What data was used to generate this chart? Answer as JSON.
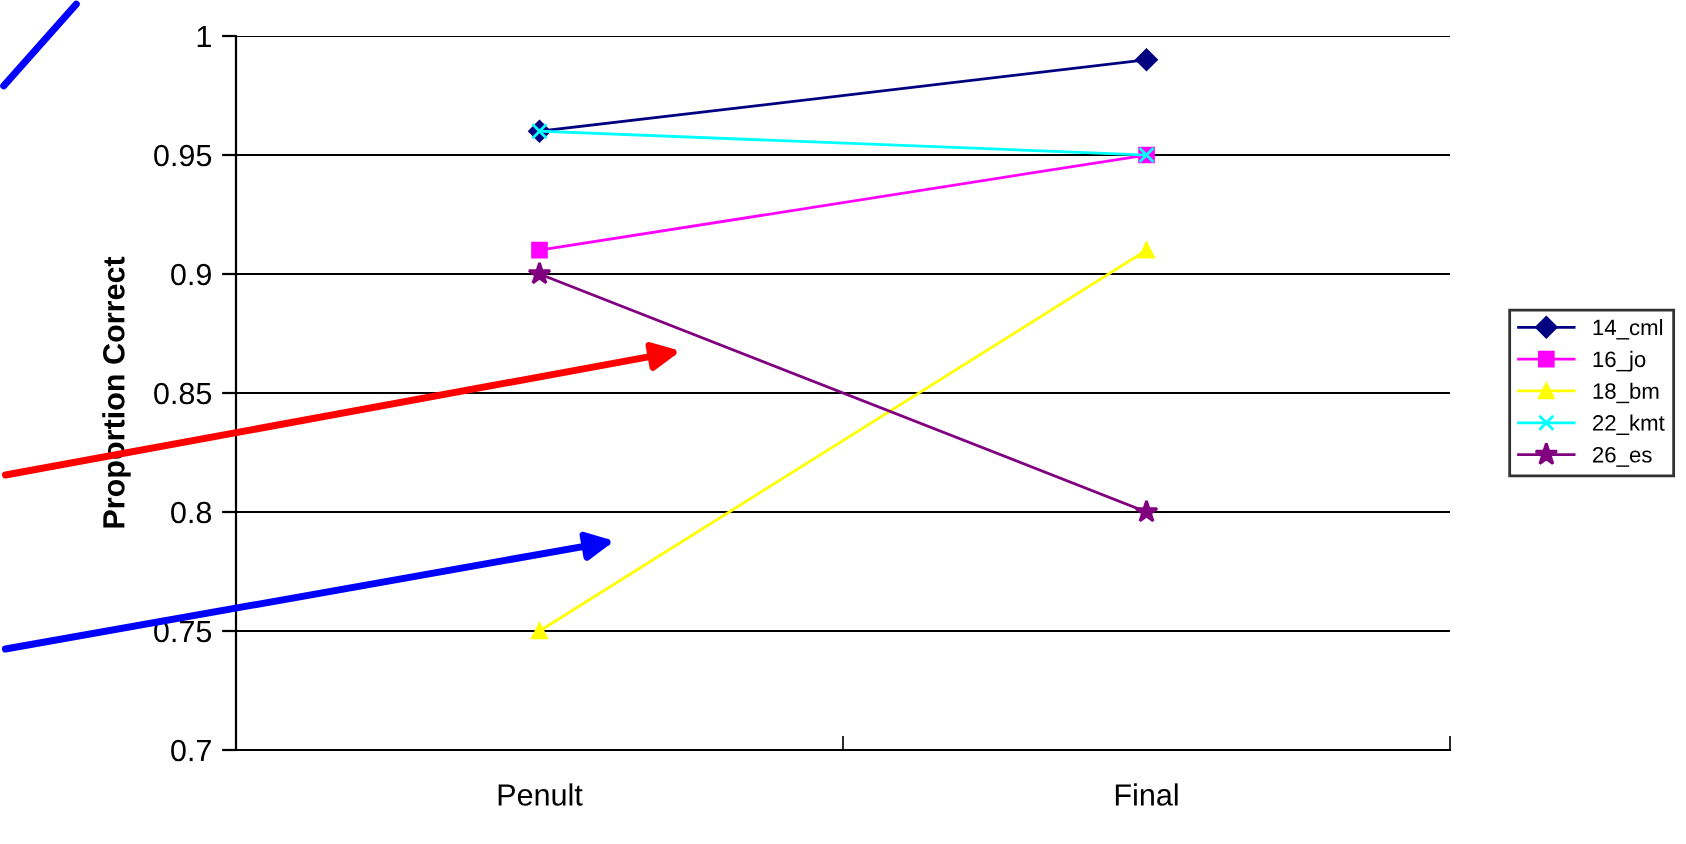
{
  "chart_data": {
    "type": "line",
    "ylabel": "Proportion Correct",
    "categories": [
      "Penult",
      "Final"
    ],
    "series": [
      {
        "name": "14_cml",
        "color": "#000080",
        "marker": "diamond",
        "values": [
          0.96,
          0.99
        ]
      },
      {
        "name": "16_jo",
        "color": "#ff00ff",
        "marker": "square",
        "values": [
          0.91,
          0.95
        ]
      },
      {
        "name": "18_bm",
        "color": "#ffff00",
        "marker": "triangle",
        "values": [
          0.75,
          0.91
        ]
      },
      {
        "name": "22_kmt",
        "color": "#00ffff",
        "marker": "cross",
        "values": [
          0.96,
          0.95
        ]
      },
      {
        "name": "26_es",
        "color": "#800080",
        "marker": "star",
        "values": [
          0.9,
          0.8
        ]
      }
    ],
    "ylim": [
      0.7,
      1
    ],
    "yticks": [
      0.7,
      0.75,
      0.8,
      0.85,
      0.9,
      0.95,
      1
    ],
    "grid": "y",
    "legend": "right",
    "line_style": "solid"
  }
}
